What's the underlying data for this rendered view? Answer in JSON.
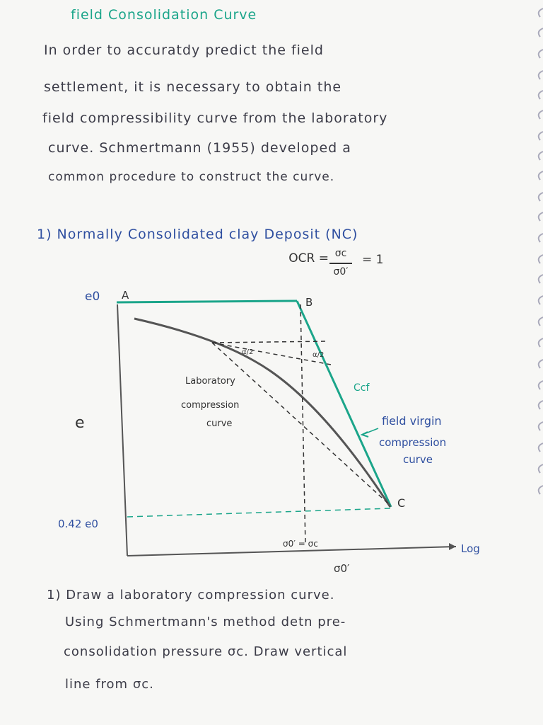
{
  "title": "field Consolidation Curve",
  "paragraph": [
    "In order to accuratdy predict the field",
    "settlement, it is necessary to obtain the",
    "field compressibility curve from the laboratory",
    "curve. Schmertmann (1955) developed a",
    "common procedure to construct the curve."
  ],
  "section": {
    "heading": "1) Normally Consolidated clay Deposit (NC)",
    "formula": {
      "lhs": "OCR =",
      "numerator": "σc",
      "denominator": "σ0′",
      "rhs": "= 1"
    }
  },
  "diagram": {
    "e0": "e0",
    "point_a": "A",
    "point_b": "B",
    "point_c": "C",
    "y_axis": "e",
    "lower_e": "0.42 e0",
    "lab_curve": [
      "Laboratory",
      "compression",
      "curve"
    ],
    "ccf": "Ccf",
    "field_curve": [
      "field virgin",
      "compression",
      "curve"
    ],
    "angle_1": "α/2",
    "angle_2": "α/2",
    "pressure_mark": "σ0′ = σc",
    "x_axis_end": "Log",
    "x_axis": "σ0′"
  },
  "steps": [
    "1) Draw a laboratory compression curve.",
    "Using Schmertmann's method detn pre-",
    "consolidation pressure σc. Draw vertical",
    "line from σc."
  ]
}
